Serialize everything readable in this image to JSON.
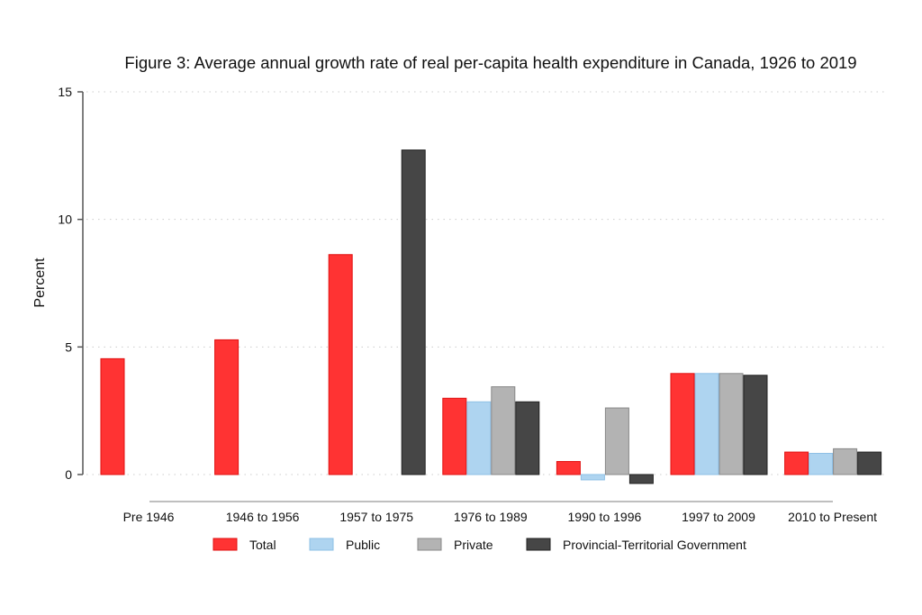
{
  "chart_data": {
    "type": "bar",
    "title": "Figure 3: Average annual growth rate of real per-capita health expenditure in Canada, 1926 to 2019",
    "xlabel": "",
    "ylabel": "Percent",
    "ylim": [
      0,
      15
    ],
    "yticks": [
      "0",
      "5",
      "10",
      "15"
    ],
    "grid": true,
    "legend_position": "bottom",
    "categories": [
      "Pre 1946",
      "1946 to 1956",
      "1957 to 1975",
      "1976 to 1989",
      "1990 to 1996",
      "1997 to 2009",
      "2010 to Present"
    ],
    "series": [
      {
        "name": "Total",
        "color": "#ff3333",
        "values": [
          4.54,
          5.28,
          8.62,
          2.99,
          0.51,
          3.96,
          0.88
        ]
      },
      {
        "name": "Public",
        "color": "#aed4f0",
        "values": [
          null,
          null,
          null,
          2.85,
          -0.21,
          3.96,
          0.83
        ]
      },
      {
        "name": "Private",
        "color": "#b3b3b3",
        "values": [
          null,
          null,
          null,
          3.44,
          2.61,
          3.96,
          1.01
        ]
      },
      {
        "name": "Provincial-Territorial Government",
        "color": "#464646",
        "values": [
          null,
          null,
          12.72,
          2.85,
          -0.35,
          3.89,
          0.88
        ]
      }
    ]
  }
}
